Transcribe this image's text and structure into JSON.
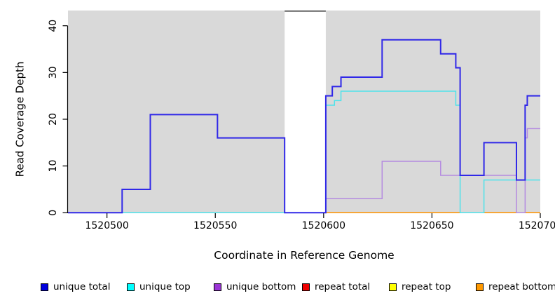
{
  "chart_data": {
    "type": "line",
    "subtype": "step-coverage",
    "title": "",
    "xlabel": "Coordinate in Reference Genome",
    "ylabel": "Read Coverage Depth",
    "xlim": [
      1520482,
      1520700
    ],
    "ylim": [
      0,
      43.3
    ],
    "x_ticks": [
      1520500,
      1520550,
      1520600,
      1520650,
      1520700
    ],
    "y_ticks": [
      0,
      10,
      20,
      30,
      40
    ],
    "grid": false,
    "panel_bg": "#d9d9d9",
    "masked_region": {
      "from": 1520582,
      "to": 1520601,
      "fill": "#ffffff",
      "top_border": "#454545"
    },
    "legend_position": "bottom",
    "series": [
      {
        "name": "repeat total",
        "color": "#ee1111",
        "line_width": 1.5,
        "steps": [
          [
            1520482,
            0
          ]
        ]
      },
      {
        "name": "repeat top",
        "color": "#f5f13d",
        "line_width": 1.5,
        "steps": [
          [
            1520482,
            0
          ]
        ]
      },
      {
        "name": "repeat bottom",
        "color": "#ff9400",
        "line_width": 1.5,
        "steps": [
          [
            1520482,
            0
          ]
        ]
      },
      {
        "name": "unique bottom",
        "color": "#b48ae0",
        "line_width": 1.5,
        "steps": [
          [
            1520482,
            0
          ],
          [
            1520601,
            3
          ],
          [
            1520627,
            11
          ],
          [
            1520654,
            8
          ],
          [
            1520689,
            0
          ],
          [
            1520693,
            16
          ],
          [
            1520694,
            18
          ]
        ]
      },
      {
        "name": "unique top",
        "color": "#4fe3ea",
        "line_width": 1.5,
        "steps": [
          [
            1520482,
            0
          ],
          [
            1520601,
            23
          ],
          [
            1520605,
            24
          ],
          [
            1520608,
            26
          ],
          [
            1520661,
            23
          ],
          [
            1520663,
            0
          ],
          [
            1520674,
            7
          ]
        ]
      },
      {
        "name": "unique total",
        "color": "#3028e8",
        "line_width": 2,
        "steps": [
          [
            1520482,
            0
          ],
          [
            1520507,
            5
          ],
          [
            1520520,
            21
          ],
          [
            1520551,
            16
          ],
          [
            1520582,
            0
          ],
          [
            1520601,
            25
          ],
          [
            1520604,
            27
          ],
          [
            1520608,
            29
          ],
          [
            1520627,
            37
          ],
          [
            1520654,
            34
          ],
          [
            1520661,
            31
          ],
          [
            1520663,
            8
          ],
          [
            1520674,
            15
          ],
          [
            1520689,
            7
          ],
          [
            1520693,
            23
          ],
          [
            1520694,
            25
          ]
        ]
      }
    ],
    "legend": [
      {
        "label": "unique total",
        "color": "#0000dd"
      },
      {
        "label": "unique top",
        "color": "#00ffff"
      },
      {
        "label": "unique bottom",
        "color": "#9b35d6"
      },
      {
        "label": "repeat total",
        "color": "#ee0000"
      },
      {
        "label": "repeat top",
        "color": "#ffff00"
      },
      {
        "label": "repeat bottom",
        "color": "#ff9900"
      }
    ]
  }
}
